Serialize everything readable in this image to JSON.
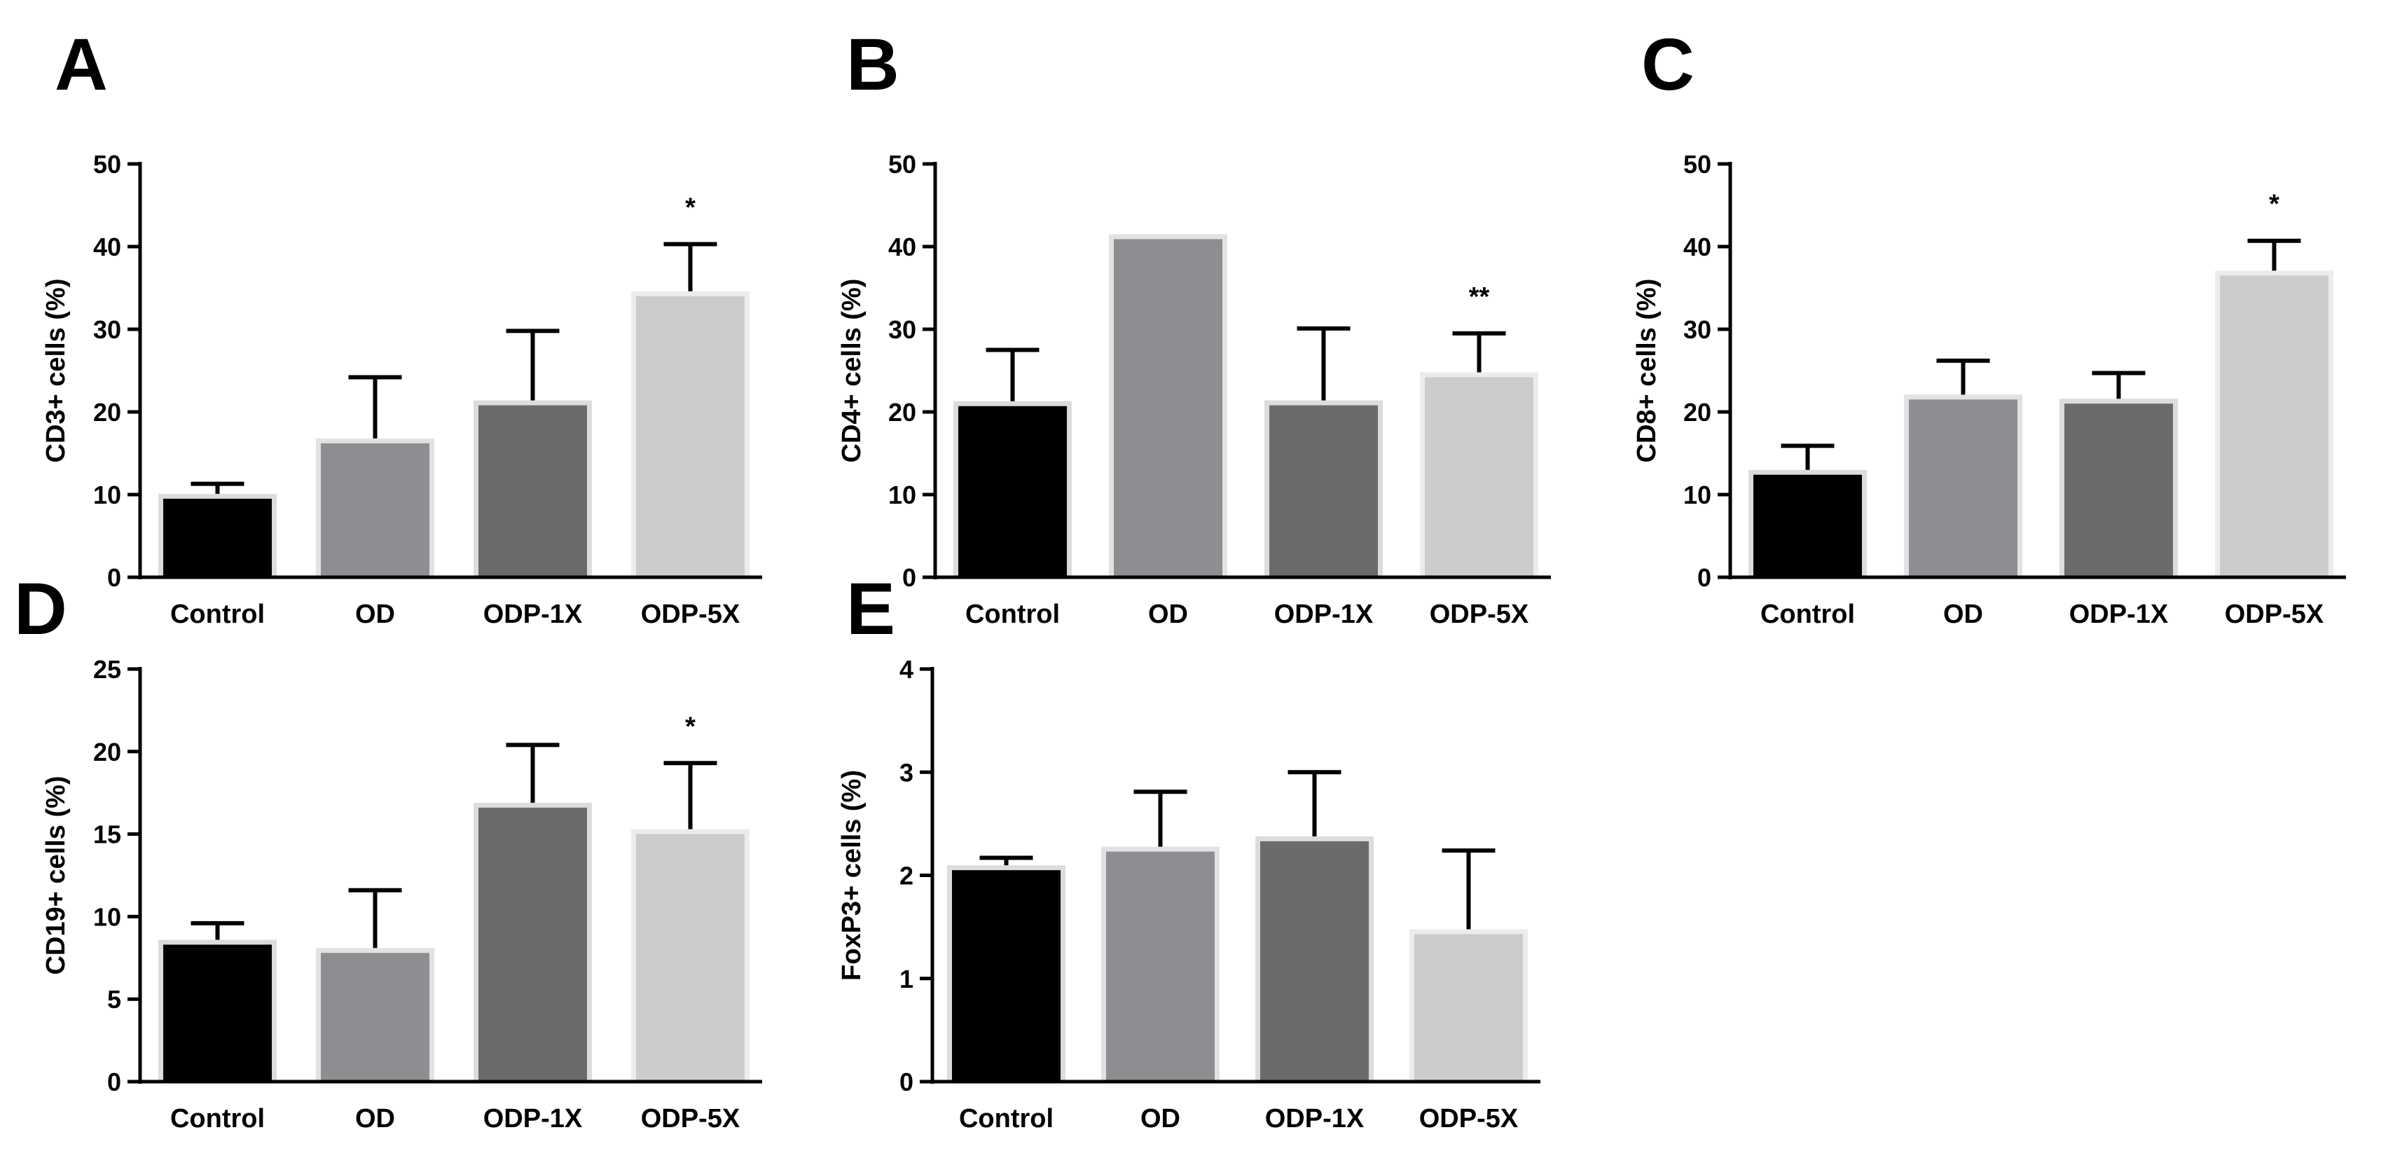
{
  "chart_data": [
    {
      "type": "bar",
      "panel": "A",
      "ylabel": "CD3+ cells (%)",
      "ylim": [
        0,
        50
      ],
      "yticks": [
        0,
        10,
        20,
        30,
        40,
        50
      ],
      "categories": [
        "Control",
        "OD",
        "ODP-1X",
        "ODP-5X"
      ],
      "values": [
        9.5,
        16.2,
        20.8,
        34.0
      ],
      "errors": [
        1.8,
        8.0,
        9.0,
        6.3
      ],
      "significance": [
        "",
        "",
        "",
        "*"
      ]
    },
    {
      "type": "bar",
      "panel": "B",
      "ylabel": "CD4+ cells (%)",
      "ylim": [
        0,
        50
      ],
      "yticks": [
        0,
        10,
        20,
        30,
        40,
        50
      ],
      "categories": [
        "Control",
        "OD",
        "ODP-1X",
        "ODP-5X"
      ],
      "values": [
        20.7,
        40.9,
        20.8,
        24.2
      ],
      "errors": [
        6.8,
        0.3,
        9.3,
        5.3
      ],
      "significance": [
        "",
        "",
        "",
        "**"
      ]
    },
    {
      "type": "bar",
      "panel": "C",
      "ylabel": "CD8+ cells (%)",
      "ylim": [
        0,
        50
      ],
      "yticks": [
        0,
        10,
        20,
        30,
        40,
        50
      ],
      "categories": [
        "Control",
        "OD",
        "ODP-1X",
        "ODP-5X"
      ],
      "values": [
        12.4,
        21.5,
        21.0,
        36.5
      ],
      "errors": [
        3.5,
        4.7,
        3.7,
        4.2
      ],
      "significance": [
        "",
        "",
        "",
        "*"
      ]
    },
    {
      "type": "bar",
      "panel": "D",
      "ylabel": "CD19+ cells (%)",
      "ylim": [
        0,
        25
      ],
      "yticks": [
        0,
        5,
        10,
        15,
        20,
        25
      ],
      "categories": [
        "Control",
        "OD",
        "ODP-1X",
        "ODP-5X"
      ],
      "values": [
        8.3,
        7.8,
        16.6,
        15.0
      ],
      "errors": [
        1.3,
        3.8,
        3.8,
        4.3
      ],
      "significance": [
        "",
        "",
        "",
        "*"
      ]
    },
    {
      "type": "bar",
      "panel": "E",
      "ylabel": "FoxP3+ cells (%)",
      "ylim": [
        0,
        4
      ],
      "yticks": [
        0,
        1,
        2,
        3,
        4
      ],
      "categories": [
        "Control",
        "OD",
        "ODP-1X",
        "ODP-5X"
      ],
      "values": [
        2.05,
        2.23,
        2.33,
        1.43
      ],
      "errors": [
        0.12,
        0.58,
        0.67,
        0.81
      ],
      "significance": [
        "",
        "",
        "",
        ""
      ]
    }
  ],
  "colors": {
    "fills": [
      "#000000",
      "#8e8d92",
      "#6b6b6b",
      "#cccccc"
    ],
    "halos": [
      "#dcdcdc",
      "#e2e2e2",
      "#dcdcdc",
      "#ececec"
    ]
  }
}
